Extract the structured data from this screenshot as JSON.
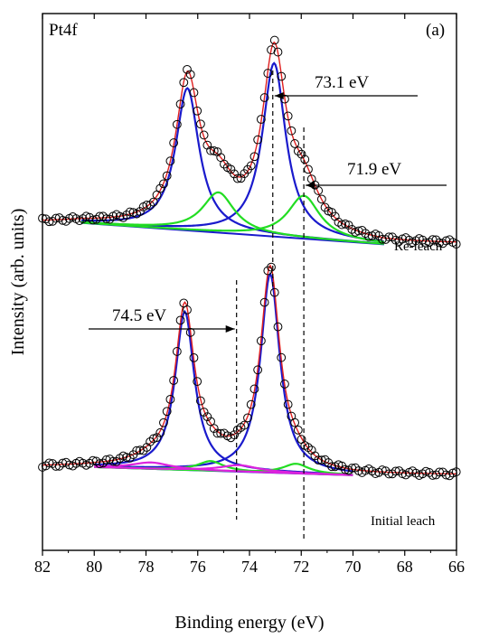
{
  "chart_data": {
    "type": "line",
    "panel_label": "(a)",
    "element_label": "Pt4f",
    "xlabel": "Binding energy (eV)",
    "ylabel": "Intensity (arb. units)",
    "xlim": [
      82,
      66
    ],
    "x_reversed": true,
    "x_ticks": [
      "82",
      "80",
      "78",
      "76",
      "74",
      "72",
      "70",
      "68",
      "66"
    ],
    "x_tick_values": [
      82,
      80,
      78,
      76,
      74,
      72,
      70,
      68,
      66
    ],
    "y_ticks_shown": false,
    "ylim": [
      0,
      1
    ],
    "colors": {
      "data_markers": "#000000",
      "envelope": "#e02020",
      "main_component": "#1a1acc",
      "secondary_component": "#22dd22",
      "minor_component": "#dd22dd"
    },
    "spectra": [
      {
        "name": "Re-leach",
        "baseline": [
          [
            80.5,
            0.61
          ],
          [
            68.8,
            0.57
          ]
        ],
        "peaks": [
          {
            "center": 76.4,
            "height": 0.265,
            "width": 0.55,
            "color_role": "main_component"
          },
          {
            "center": 73.05,
            "height": 0.323,
            "width": 0.55,
            "color_role": "main_component"
          },
          {
            "center": 75.2,
            "height": 0.075,
            "width": 0.75,
            "color_role": "secondary_component"
          },
          {
            "center": 71.9,
            "height": 0.08,
            "width": 0.75,
            "color_role": "secondary_component"
          }
        ],
        "data_range": [
          82.0,
          66.0
        ]
      },
      {
        "name": "Initial leach",
        "baseline": [
          [
            80.0,
            0.155
          ],
          [
            70.0,
            0.14
          ]
        ],
        "peaks": [
          {
            "center": 76.5,
            "height": 0.295,
            "width": 0.45,
            "color_role": "main_component"
          },
          {
            "center": 73.2,
            "height": 0.37,
            "width": 0.45,
            "color_role": "main_component"
          },
          {
            "center": 75.5,
            "height": 0.018,
            "width": 0.6,
            "color_role": "secondary_component"
          },
          {
            "center": 72.2,
            "height": 0.018,
            "width": 0.6,
            "color_role": "secondary_component"
          },
          {
            "center": 77.8,
            "height": 0.012,
            "width": 0.9,
            "color_role": "minor_component"
          },
          {
            "center": 74.4,
            "height": 0.012,
            "width": 0.9,
            "color_role": "minor_component"
          }
        ],
        "data_range": [
          82.0,
          66.0
        ]
      }
    ],
    "reference_lines": [
      {
        "x": 73.1,
        "style": "dashed"
      },
      {
        "x": 71.9,
        "style": "dashed"
      },
      {
        "x": 74.5,
        "style": "dashed"
      }
    ],
    "annotations": [
      {
        "text": "73.1 eV",
        "points_to": 73.1
      },
      {
        "text": "71.9 eV",
        "points_to": 71.9
      },
      {
        "text": "74.5 eV",
        "points_to": 74.5
      },
      {
        "text": "Re-leach",
        "labels": "Re-leach"
      },
      {
        "text": "Initial leach",
        "labels": "Initial leach"
      }
    ]
  }
}
